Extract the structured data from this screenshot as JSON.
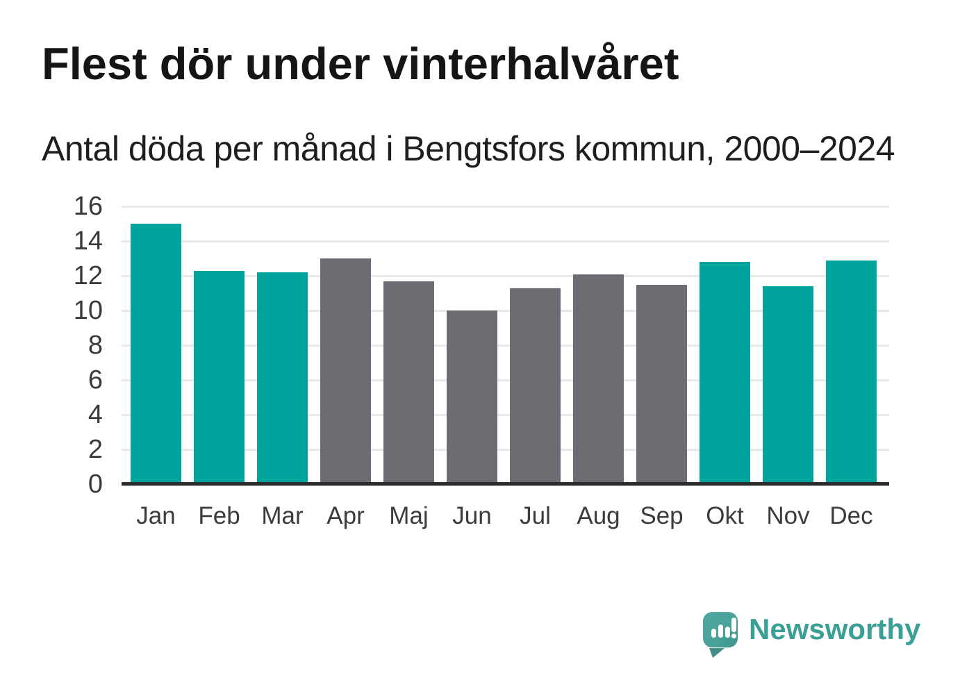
{
  "header": {
    "title": "Flest dör under vinterhalvåret",
    "subtitle": "Antal döda per månad i Bengtsfors kommun, 2000–2024"
  },
  "chart_data": {
    "type": "bar",
    "title": "Flest dör under vinterhalvåret",
    "subtitle": "Antal döda per månad i Bengtsfors kommun, 2000–2024",
    "categories": [
      "Jan",
      "Feb",
      "Mar",
      "Apr",
      "Maj",
      "Jun",
      "Jul",
      "Aug",
      "Sep",
      "Okt",
      "Nov",
      "Dec"
    ],
    "values": [
      15.0,
      12.3,
      12.2,
      13.0,
      11.7,
      10.0,
      11.3,
      12.1,
      11.5,
      12.8,
      11.4,
      12.9
    ],
    "bar_color_keys": [
      "teal",
      "teal",
      "teal",
      "gray",
      "gray",
      "gray",
      "gray",
      "gray",
      "gray",
      "teal",
      "teal",
      "teal"
    ],
    "highlight_note": "winter half-year months (Jan–Mar, Okt–Dec) highlighted in teal; Apr–Sep gray",
    "xlabel": "",
    "ylabel": "",
    "ylim": [
      0,
      16
    ],
    "yticks": [
      0,
      2,
      4,
      6,
      8,
      10,
      12,
      14,
      16
    ],
    "grid": "horizontal",
    "legend": "none",
    "colors": {
      "teal": "#00a49c",
      "gray": "#6d6c72",
      "gridline": "#e8e8e8",
      "axis_line": "#2b2b2b",
      "tick_label": "#3a3a3a"
    }
  },
  "brand": {
    "name": "Newsworthy",
    "accent": "#3aa096"
  }
}
